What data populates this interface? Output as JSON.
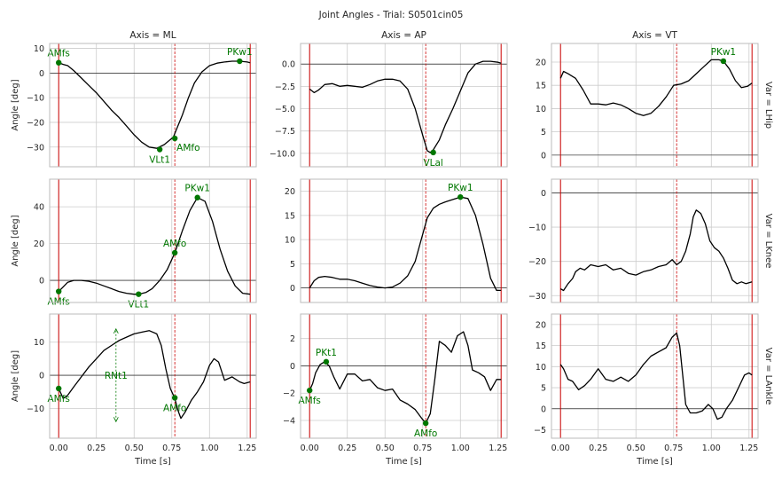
{
  "figure_title": "Joint Angles - Trial: S0501cin05",
  "colors": {
    "curve": "#000000",
    "event_line": "#cc0000",
    "marker": "#007700",
    "grid": "#cccccc",
    "frame": "#bbbbbb",
    "zero_line": "#000000"
  },
  "chart_data": [
    {
      "type": "line",
      "row": 0,
      "col": 0,
      "title": "Axis = ML",
      "row_label": "",
      "ylabel": "Angle [deg]",
      "xlabel": "",
      "xlim": [
        -0.06,
        1.31
      ],
      "ylim": [
        -38,
        12
      ],
      "xticks": [
        0.0,
        0.25,
        0.5,
        0.75,
        1.0,
        1.25
      ],
      "show_xticklabels": false,
      "yticks": [
        -30,
        -20,
        -10,
        0,
        10
      ],
      "vlines_solid": [
        0.0,
        1.27
      ],
      "vlines_dashed": [
        0.77
      ],
      "series": [
        {
          "x": [
            0.0,
            0.03,
            0.06,
            0.1,
            0.15,
            0.2,
            0.25,
            0.3,
            0.35,
            0.4,
            0.45,
            0.5,
            0.55,
            0.6,
            0.65,
            0.7,
            0.73,
            0.76,
            0.78,
            0.82,
            0.86,
            0.9,
            0.95,
            1.0,
            1.05,
            1.1,
            1.15,
            1.2,
            1.25,
            1.27
          ],
          "y": [
            4.2,
            3.5,
            3.0,
            1.0,
            -2.0,
            -5.0,
            -8.0,
            -11.5,
            -15.0,
            -18.0,
            -21.5,
            -25.0,
            -28.0,
            -30.0,
            -30.5,
            -29.0,
            -27.5,
            -26.0,
            -23.0,
            -17.0,
            -10.0,
            -4.0,
            0.5,
            3.0,
            4.0,
            4.5,
            4.8,
            4.8,
            4.5,
            4.2
          ]
        }
      ],
      "markers": [
        {
          "label": "AMfs",
          "x": 0.0,
          "y": 4.2,
          "pos": "above"
        },
        {
          "label": "VLt1",
          "x": 0.67,
          "y": -31.0,
          "pos": "below"
        },
        {
          "label": "AMfo",
          "x": 0.77,
          "y": -26.5,
          "pos": "belowright"
        },
        {
          "label": "PKw1",
          "x": 1.2,
          "y": 4.8,
          "pos": "above"
        }
      ]
    },
    {
      "type": "line",
      "row": 0,
      "col": 1,
      "title": "Axis = AP",
      "row_label": "",
      "ylabel": "",
      "xlabel": "",
      "xlim": [
        -0.06,
        1.31
      ],
      "ylim": [
        -11.5,
        2.3
      ],
      "xticks": [
        0.0,
        0.25,
        0.5,
        0.75,
        1.0,
        1.25
      ],
      "show_xticklabels": false,
      "yticks": [
        -10.0,
        -7.5,
        -5.0,
        -2.5,
        0.0
      ],
      "vlines_solid": [
        0.0,
        1.27
      ],
      "vlines_dashed": [
        0.77
      ],
      "series": [
        {
          "x": [
            0.0,
            0.03,
            0.06,
            0.1,
            0.15,
            0.2,
            0.25,
            0.3,
            0.35,
            0.4,
            0.45,
            0.5,
            0.55,
            0.6,
            0.65,
            0.7,
            0.75,
            0.78,
            0.8,
            0.82,
            0.86,
            0.9,
            0.95,
            1.0,
            1.05,
            1.1,
            1.15,
            1.2,
            1.25,
            1.27
          ],
          "y": [
            -2.8,
            -3.2,
            -2.9,
            -2.3,
            -2.2,
            -2.5,
            -2.4,
            -2.5,
            -2.6,
            -2.3,
            -1.9,
            -1.7,
            -1.7,
            -1.9,
            -2.8,
            -5.0,
            -8.0,
            -9.7,
            -9.9,
            -9.6,
            -8.5,
            -6.8,
            -5.0,
            -3.0,
            -1.0,
            0.0,
            0.3,
            0.3,
            0.2,
            0.1
          ]
        }
      ],
      "markers": [
        {
          "label": "VLal",
          "x": 0.82,
          "y": -9.9,
          "pos": "below"
        }
      ]
    },
    {
      "type": "line",
      "row": 0,
      "col": 2,
      "title": "Axis = VT",
      "row_label": "Var = LHip",
      "ylabel": "",
      "xlabel": "",
      "xlim": [
        -0.06,
        1.31
      ],
      "ylim": [
        -2.5,
        24
      ],
      "xticks": [
        0.0,
        0.25,
        0.5,
        0.75,
        1.0,
        1.25
      ],
      "show_xticklabels": false,
      "yticks": [
        0,
        5,
        10,
        15,
        20
      ],
      "vlines_solid": [
        0.0,
        1.27
      ],
      "vlines_dashed": [
        0.77
      ],
      "series": [
        {
          "x": [
            0.0,
            0.02,
            0.05,
            0.1,
            0.15,
            0.2,
            0.25,
            0.3,
            0.35,
            0.4,
            0.45,
            0.5,
            0.55,
            0.6,
            0.65,
            0.7,
            0.75,
            0.8,
            0.85,
            0.9,
            0.95,
            1.0,
            1.05,
            1.08,
            1.12,
            1.16,
            1.2,
            1.24,
            1.27
          ],
          "y": [
            16.5,
            18.0,
            17.5,
            16.5,
            14.0,
            11.0,
            11.0,
            10.8,
            11.2,
            10.8,
            10.0,
            9.0,
            8.5,
            9.0,
            10.5,
            12.5,
            15.0,
            15.3,
            16.0,
            17.5,
            19.0,
            20.5,
            20.5,
            20.2,
            18.5,
            16.0,
            14.5,
            14.8,
            15.5
          ]
        }
      ],
      "markers": [
        {
          "label": "PKw1",
          "x": 1.08,
          "y": 20.2,
          "pos": "above"
        }
      ]
    },
    {
      "type": "line",
      "row": 1,
      "col": 0,
      "title": "",
      "row_label": "",
      "ylabel": "Angle [deg]",
      "xlabel": "",
      "xlim": [
        -0.06,
        1.31
      ],
      "ylim": [
        -12,
        55
      ],
      "xticks": [
        0.0,
        0.25,
        0.5,
        0.75,
        1.0,
        1.25
      ],
      "show_xticklabels": false,
      "yticks": [
        0,
        20,
        40
      ],
      "vlines_solid": [
        0.0,
        1.27
      ],
      "vlines_dashed": [
        0.77
      ],
      "series": [
        {
          "x": [
            0.0,
            0.03,
            0.06,
            0.1,
            0.15,
            0.2,
            0.25,
            0.3,
            0.35,
            0.4,
            0.45,
            0.5,
            0.53,
            0.58,
            0.62,
            0.67,
            0.72,
            0.77,
            0.82,
            0.87,
            0.92,
            0.97,
            1.02,
            1.07,
            1.12,
            1.17,
            1.22,
            1.27
          ],
          "y": [
            -6.0,
            -3.5,
            -1.0,
            0.0,
            0.0,
            -0.5,
            -1.5,
            -3.0,
            -4.5,
            -6.0,
            -7.0,
            -7.5,
            -7.5,
            -6.5,
            -4.5,
            0.0,
            6.0,
            15.0,
            27.0,
            38.0,
            45.0,
            43.0,
            32.0,
            17.0,
            5.0,
            -3.0,
            -7.0,
            -7.5
          ]
        }
      ],
      "markers": [
        {
          "label": "AMfs",
          "x": 0.0,
          "y": -6.0,
          "pos": "below"
        },
        {
          "label": "VLt1",
          "x": 0.53,
          "y": -7.5,
          "pos": "below"
        },
        {
          "label": "AMfo",
          "x": 0.77,
          "y": 15.0,
          "pos": "above"
        },
        {
          "label": "PKw1",
          "x": 0.92,
          "y": 45.0,
          "pos": "above"
        }
      ]
    },
    {
      "type": "line",
      "row": 1,
      "col": 1,
      "title": "",
      "row_label": "",
      "ylabel": "",
      "xlabel": "",
      "xlim": [
        -0.06,
        1.31
      ],
      "ylim": [
        -3,
        22.5
      ],
      "xticks": [
        0.0,
        0.25,
        0.5,
        0.75,
        1.0,
        1.25
      ],
      "show_xticklabels": false,
      "yticks": [
        0,
        5,
        10,
        15,
        20
      ],
      "vlines_solid": [
        0.0,
        1.27
      ],
      "vlines_dashed": [
        0.77
      ],
      "series": [
        {
          "x": [
            0.0,
            0.03,
            0.06,
            0.1,
            0.15,
            0.2,
            0.25,
            0.3,
            0.35,
            0.4,
            0.45,
            0.5,
            0.55,
            0.6,
            0.65,
            0.7,
            0.74,
            0.78,
            0.82,
            0.86,
            0.9,
            0.95,
            1.0,
            1.05,
            1.1,
            1.15,
            1.2,
            1.24,
            1.27
          ],
          "y": [
            0.0,
            1.5,
            2.2,
            2.4,
            2.2,
            1.8,
            1.8,
            1.5,
            1.0,
            0.5,
            0.2,
            0.0,
            0.2,
            1.0,
            2.5,
            5.5,
            10.0,
            14.5,
            16.5,
            17.3,
            17.8,
            18.3,
            18.8,
            18.5,
            15.0,
            9.0,
            2.0,
            -0.5,
            -0.5
          ]
        }
      ],
      "markers": [
        {
          "label": "PKw1",
          "x": 1.0,
          "y": 18.8,
          "pos": "above"
        }
      ]
    },
    {
      "type": "line",
      "row": 1,
      "col": 2,
      "title": "",
      "row_label": "Var = LKnee",
      "ylabel": "",
      "xlabel": "",
      "xlim": [
        -0.06,
        1.31
      ],
      "ylim": [
        -32,
        4
      ],
      "xticks": [
        0.0,
        0.25,
        0.5,
        0.75,
        1.0,
        1.25
      ],
      "show_xticklabels": false,
      "yticks": [
        -30,
        -20,
        -10,
        0
      ],
      "vlines_solid": [
        0.0,
        1.27
      ],
      "vlines_dashed": [
        0.77
      ],
      "series": [
        {
          "x": [
            0.0,
            0.02,
            0.05,
            0.08,
            0.1,
            0.13,
            0.16,
            0.2,
            0.25,
            0.3,
            0.35,
            0.4,
            0.45,
            0.5,
            0.55,
            0.6,
            0.65,
            0.7,
            0.74,
            0.77,
            0.8,
            0.83,
            0.86,
            0.88,
            0.9,
            0.93,
            0.96,
            0.99,
            1.02,
            1.05,
            1.08,
            1.11,
            1.14,
            1.17,
            1.2,
            1.23,
            1.27
          ],
          "y": [
            -28.0,
            -28.5,
            -26.5,
            -25.0,
            -23.0,
            -22.0,
            -22.5,
            -21.0,
            -21.5,
            -21.0,
            -22.5,
            -22.0,
            -23.5,
            -24.0,
            -23.0,
            -22.5,
            -21.5,
            -21.0,
            -19.5,
            -21.0,
            -20.0,
            -17.0,
            -12.0,
            -7.0,
            -5.0,
            -6.0,
            -9.0,
            -14.0,
            -16.0,
            -17.0,
            -19.0,
            -22.0,
            -25.5,
            -26.5,
            -26.0,
            -26.5,
            -26.0
          ]
        }
      ],
      "markers": []
    },
    {
      "type": "line",
      "row": 2,
      "col": 0,
      "title": "",
      "row_label": "",
      "ylabel": "Angle [deg]",
      "xlabel": "Time [s]",
      "xlim": [
        -0.06,
        1.31
      ],
      "ylim": [
        -19,
        18.5
      ],
      "xticks": [
        0.0,
        0.25,
        0.5,
        0.75,
        1.0,
        1.25
      ],
      "show_xticklabels": true,
      "xticklabels": [
        "0.00",
        "0.25",
        "0.50",
        "0.75",
        "1.00",
        "1.25"
      ],
      "yticks": [
        -10,
        0,
        10
      ],
      "vlines_solid": [
        0.0,
        1.27
      ],
      "vlines_dashed": [
        0.77
      ],
      "series": [
        {
          "x": [
            0.0,
            0.03,
            0.06,
            0.1,
            0.15,
            0.2,
            0.25,
            0.3,
            0.35,
            0.4,
            0.45,
            0.5,
            0.55,
            0.6,
            0.65,
            0.68,
            0.71,
            0.74,
            0.77,
            0.79,
            0.81,
            0.84,
            0.88,
            0.92,
            0.96,
            1.0,
            1.03,
            1.06,
            1.1,
            1.15,
            1.2,
            1.23,
            1.27
          ],
          "y": [
            -4.0,
            -7.0,
            -6.0,
            -3.5,
            -0.5,
            2.5,
            5.0,
            7.5,
            9.0,
            10.5,
            11.5,
            12.5,
            13.0,
            13.5,
            12.5,
            9.0,
            2.0,
            -4.0,
            -7.0,
            -10.5,
            -13.0,
            -11.0,
            -7.5,
            -5.0,
            -2.0,
            3.0,
            5.0,
            4.0,
            -1.5,
            -0.5,
            -2.0,
            -2.5,
            -2.0
          ]
        }
      ],
      "markers": [
        {
          "label": "AMfs",
          "x": 0.0,
          "y": -4.0,
          "pos": "below"
        },
        {
          "label": "AMfo",
          "x": 0.77,
          "y": -6.8,
          "pos": "below"
        }
      ],
      "annotation": {
        "label": "RNt1",
        "x": 0.38,
        "y_top": 14.0,
        "y_bottom": -14.0
      }
    },
    {
      "type": "line",
      "row": 2,
      "col": 1,
      "title": "",
      "row_label": "",
      "ylabel": "",
      "xlabel": "Time [s]",
      "xlim": [
        -0.06,
        1.31
      ],
      "ylim": [
        -5.3,
        3.8
      ],
      "xticks": [
        0.0,
        0.25,
        0.5,
        0.75,
        1.0,
        1.25
      ],
      "show_xticklabels": true,
      "xticklabels": [
        "0.00",
        "0.25",
        "0.50",
        "0.75",
        "1.00",
        "1.25"
      ],
      "yticks": [
        -4,
        -2,
        0,
        2
      ],
      "vlines_solid": [
        0.0,
        1.27
      ],
      "vlines_dashed": [
        0.77
      ],
      "series": [
        {
          "x": [
            0.0,
            0.02,
            0.04,
            0.07,
            0.1,
            0.13,
            0.16,
            0.2,
            0.25,
            0.3,
            0.35,
            0.4,
            0.45,
            0.5,
            0.55,
            0.6,
            0.65,
            0.7,
            0.74,
            0.77,
            0.8,
            0.83,
            0.86,
            0.9,
            0.94,
            0.98,
            1.02,
            1.05,
            1.08,
            1.12,
            1.16,
            1.2,
            1.24,
            1.27
          ],
          "y": [
            -1.8,
            -1.3,
            -0.5,
            0.1,
            0.3,
            0.0,
            -0.8,
            -1.7,
            -0.6,
            -0.6,
            -1.1,
            -1.0,
            -1.6,
            -1.8,
            -1.7,
            -2.5,
            -2.8,
            -3.2,
            -3.8,
            -4.2,
            -3.5,
            -1.0,
            1.8,
            1.5,
            1.0,
            2.2,
            2.5,
            1.5,
            -0.3,
            -0.5,
            -0.8,
            -1.8,
            -1.0,
            -1.0
          ]
        }
      ],
      "markers": [
        {
          "label": "AMfs",
          "x": 0.0,
          "y": -1.8,
          "pos": "below"
        },
        {
          "label": "PKt1",
          "x": 0.11,
          "y": 0.3,
          "pos": "above"
        },
        {
          "label": "AMfo",
          "x": 0.77,
          "y": -4.2,
          "pos": "below"
        }
      ]
    },
    {
      "type": "line",
      "row": 2,
      "col": 2,
      "title": "",
      "row_label": "Var = LAnkle",
      "ylabel": "",
      "xlabel": "Time [s]",
      "xlim": [
        -0.06,
        1.31
      ],
      "ylim": [
        -7,
        22.5
      ],
      "xticks": [
        0.0,
        0.25,
        0.5,
        0.75,
        1.0,
        1.25
      ],
      "show_xticklabels": true,
      "xticklabels": [
        "0.00",
        "0.25",
        "0.50",
        "0.75",
        "1.00",
        "1.25"
      ],
      "yticks": [
        -5,
        0,
        5,
        10,
        15,
        20
      ],
      "vlines_solid": [
        0.0,
        1.27
      ],
      "vlines_dashed": [
        0.77
      ],
      "series": [
        {
          "x": [
            0.0,
            0.02,
            0.05,
            0.08,
            0.12,
            0.16,
            0.2,
            0.25,
            0.3,
            0.35,
            0.4,
            0.45,
            0.5,
            0.55,
            0.6,
            0.65,
            0.7,
            0.74,
            0.77,
            0.79,
            0.81,
            0.83,
            0.86,
            0.9,
            0.94,
            0.98,
            1.01,
            1.04,
            1.07,
            1.1,
            1.14,
            1.18,
            1.22,
            1.25,
            1.27
          ],
          "y": [
            10.5,
            9.5,
            7.0,
            6.5,
            4.5,
            5.5,
            7.0,
            9.5,
            7.0,
            6.5,
            7.5,
            6.5,
            8.0,
            10.5,
            12.5,
            13.5,
            14.5,
            17.0,
            18.0,
            15.0,
            8.0,
            1.0,
            -1.0,
            -1.0,
            -0.5,
            1.0,
            0.0,
            -2.5,
            -2.0,
            0.0,
            2.0,
            5.0,
            8.0,
            8.5,
            8.0
          ]
        }
      ],
      "markers": []
    }
  ]
}
